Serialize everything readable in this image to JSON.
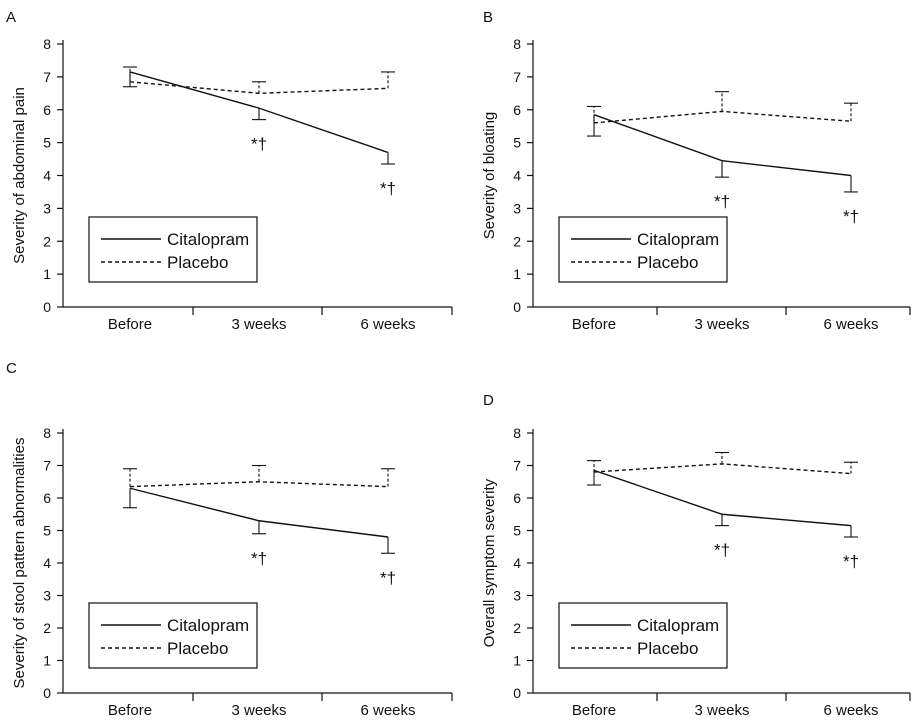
{
  "legend": {
    "citalopram": "Citalopram",
    "placebo": "Placebo"
  },
  "annotation_text": "*†",
  "chart_data": [
    {
      "type": "line",
      "panel": "A",
      "ylabel": "Severity of abdominal pain",
      "categories": [
        "Before",
        "3 weeks",
        "6 weeks"
      ],
      "yticks": [
        0,
        1,
        2,
        3,
        4,
        5,
        6,
        7,
        8
      ],
      "ylim": [
        0,
        8
      ],
      "series": [
        {
          "name": "Citalopram",
          "values": [
            7.15,
            6.05,
            4.7
          ],
          "errors": [
            0.45,
            0.35,
            0.35
          ],
          "error_direction": "down"
        },
        {
          "name": "Placebo",
          "values": [
            6.85,
            6.5,
            6.65
          ],
          "errors": [
            0.45,
            0.35,
            0.5
          ],
          "error_direction": "up"
        }
      ],
      "annotations": [
        {
          "category": "3 weeks",
          "text": "*†"
        },
        {
          "category": "6 weeks",
          "text": "*†"
        }
      ]
    },
    {
      "type": "line",
      "panel": "B",
      "ylabel": "Severity of bloating",
      "categories": [
        "Before",
        "3 weeks",
        "6 weeks"
      ],
      "yticks": [
        0,
        1,
        2,
        3,
        4,
        5,
        6,
        7,
        8
      ],
      "ylim": [
        0,
        8
      ],
      "series": [
        {
          "name": "Citalopram",
          "values": [
            5.85,
            4.45,
            4.0
          ],
          "errors": [
            0.65,
            0.5,
            0.5
          ],
          "error_direction": "down"
        },
        {
          "name": "Placebo",
          "values": [
            5.6,
            5.95,
            5.65
          ],
          "errors": [
            0.5,
            0.6,
            0.55
          ],
          "error_direction": "up"
        }
      ],
      "annotations": [
        {
          "category": "3 weeks",
          "text": "*†"
        },
        {
          "category": "6 weeks",
          "text": "*†"
        }
      ]
    },
    {
      "type": "line",
      "panel": "C",
      "ylabel": "Severity of stool pattern abnormalities",
      "categories": [
        "Before",
        "3 weeks",
        "6 weeks"
      ],
      "yticks": [
        0,
        1,
        2,
        3,
        4,
        5,
        6,
        7,
        8
      ],
      "ylim": [
        0,
        8
      ],
      "series": [
        {
          "name": "Citalopram",
          "values": [
            6.3,
            5.3,
            4.8
          ],
          "errors": [
            0.6,
            0.4,
            0.5
          ],
          "error_direction": "down"
        },
        {
          "name": "Placebo",
          "values": [
            6.35,
            6.5,
            6.35
          ],
          "errors": [
            0.55,
            0.5,
            0.55
          ],
          "error_direction": "up"
        }
      ],
      "annotations": [
        {
          "category": "3 weeks",
          "text": "*†"
        },
        {
          "category": "6 weeks",
          "text": "*†"
        }
      ]
    },
    {
      "type": "line",
      "panel": "D",
      "ylabel": "Overall symptom severity",
      "categories": [
        "Before",
        "3 weeks",
        "6 weeks"
      ],
      "yticks": [
        0,
        1,
        2,
        3,
        4,
        5,
        6,
        7,
        8
      ],
      "ylim": [
        0,
        8
      ],
      "series": [
        {
          "name": "Citalopram",
          "values": [
            6.85,
            5.5,
            5.15
          ],
          "errors": [
            0.45,
            0.35,
            0.35
          ],
          "error_direction": "down"
        },
        {
          "name": "Placebo",
          "values": [
            6.8,
            7.05,
            6.75
          ],
          "errors": [
            0.35,
            0.35,
            0.35
          ],
          "error_direction": "up"
        }
      ],
      "annotations": [
        {
          "category": "3 weeks",
          "text": "*†"
        },
        {
          "category": "6 weeks",
          "text": "*†"
        }
      ]
    }
  ]
}
